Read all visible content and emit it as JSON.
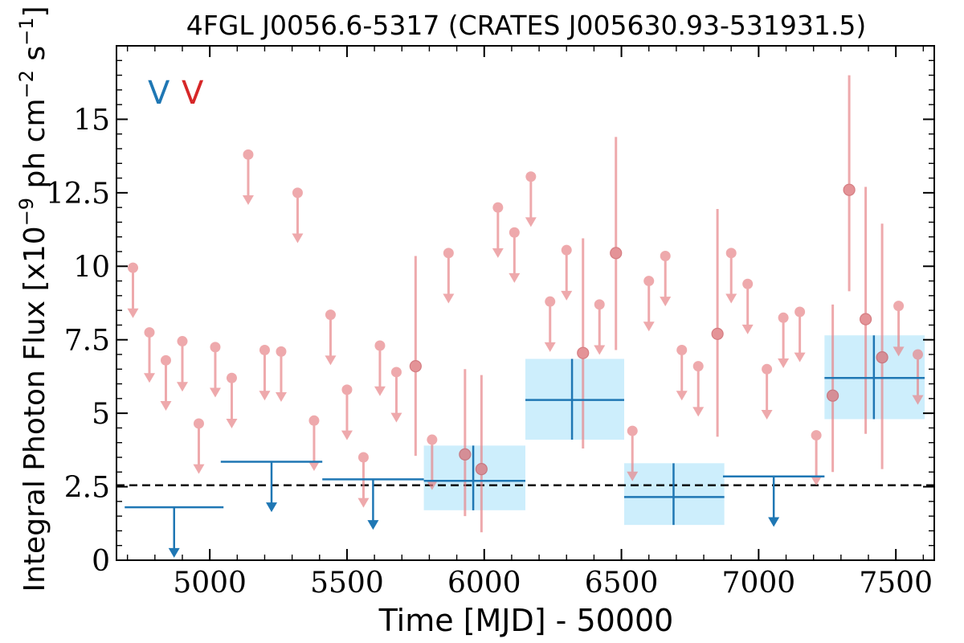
{
  "chart_data": {
    "type": "scatter",
    "title": "4FGL J0056.6-5317 (CRATES J005630.93-531931.5)",
    "xlabel": "Time [MJD] - 50000",
    "ylabel": "Integral Photon Flux [x10",
    "ylabel_exp": "−9",
    "ylabel_mid": " ph cm",
    "ylabel_exp2": "−2",
    "ylabel_end": " s",
    "ylabel_exp3": "−1",
    "ylabel_close": "]",
    "legend": [
      {
        "symbol": "V",
        "color": "#1f77b4"
      },
      {
        "symbol": "V",
        "color": "#d62728"
      }
    ],
    "xlim": [
      4660,
      7640
    ],
    "ylim": [
      0,
      17.5
    ],
    "x_ticks": [
      5000,
      5500,
      6000,
      6500,
      7000,
      7500
    ],
    "x_tick_labels": [
      "5000",
      "5500",
      "6000",
      "6500",
      "7000",
      "7500"
    ],
    "y_ticks": [
      0,
      2.5,
      5,
      7.5,
      10,
      12.5,
      15
    ],
    "y_tick_labels": [
      "0",
      "2.5",
      "5",
      "7.5",
      "10",
      "12.5",
      "15"
    ],
    "reference_line": {
      "y": 2.55,
      "style": "dashed",
      "color": "#000000"
    },
    "series_blue": {
      "color": "#1f77b4",
      "box_color": "#cdeefc",
      "upper_limits": [
        {
          "x0": 4690,
          "x1": 5050,
          "y": 1.8
        },
        {
          "x0": 5040,
          "x1": 5410,
          "y": 3.35
        },
        {
          "x0": 5410,
          "x1": 5780,
          "y": 2.75
        },
        {
          "x0": 6870,
          "x1": 7240,
          "y": 2.85
        }
      ],
      "detections": [
        {
          "x": 5960,
          "x0": 5780,
          "x1": 6150,
          "y": 2.7,
          "ylo": 1.7,
          "yhi": 3.9
        },
        {
          "x": 6320,
          "x0": 6150,
          "x1": 6510,
          "y": 5.45,
          "ylo": 4.1,
          "yhi": 6.85
        },
        {
          "x": 6690,
          "x0": 6510,
          "x1": 6875,
          "y": 2.15,
          "ylo": 1.2,
          "yhi": 3.3
        },
        {
          "x": 7420,
          "x0": 7240,
          "x1": 7605,
          "y": 6.2,
          "ylo": 4.8,
          "yhi": 7.65
        }
      ]
    },
    "series_red": {
      "color": "#e8868a",
      "upper_limits": [
        {
          "x": 4720,
          "y": 9.95
        },
        {
          "x": 4780,
          "y": 7.75
        },
        {
          "x": 4840,
          "y": 6.8
        },
        {
          "x": 4900,
          "y": 7.45
        },
        {
          "x": 4960,
          "y": 4.65
        },
        {
          "x": 5020,
          "y": 7.25
        },
        {
          "x": 5080,
          "y": 6.2
        },
        {
          "x": 5140,
          "y": 13.8
        },
        {
          "x": 5200,
          "y": 7.15
        },
        {
          "x": 5260,
          "y": 7.1
        },
        {
          "x": 5320,
          "y": 12.5
        },
        {
          "x": 5380,
          "y": 4.75
        },
        {
          "x": 5440,
          "y": 8.35
        },
        {
          "x": 5500,
          "y": 5.8
        },
        {
          "x": 5560,
          "y": 3.5
        },
        {
          "x": 5620,
          "y": 7.3
        },
        {
          "x": 5680,
          "y": 6.4
        },
        {
          "x": 5810,
          "y": 4.1
        },
        {
          "x": 5870,
          "y": 10.45
        },
        {
          "x": 6050,
          "y": 12.0
        },
        {
          "x": 6110,
          "y": 11.15
        },
        {
          "x": 6170,
          "y": 13.05
        },
        {
          "x": 6240,
          "y": 8.8
        },
        {
          "x": 6300,
          "y": 10.55
        },
        {
          "x": 6420,
          "y": 8.7
        },
        {
          "x": 6540,
          "y": 4.4
        },
        {
          "x": 6600,
          "y": 9.5
        },
        {
          "x": 6660,
          "y": 10.35
        },
        {
          "x": 6720,
          "y": 7.15
        },
        {
          "x": 6780,
          "y": 6.6
        },
        {
          "x": 6900,
          "y": 10.45
        },
        {
          "x": 6960,
          "y": 9.4
        },
        {
          "x": 7030,
          "y": 6.5
        },
        {
          "x": 7090,
          "y": 8.25
        },
        {
          "x": 7150,
          "y": 8.45
        },
        {
          "x": 7210,
          "y": 4.25
        },
        {
          "x": 7510,
          "y": 8.65
        },
        {
          "x": 7580,
          "y": 7.0
        }
      ],
      "detections": [
        {
          "x": 5750,
          "y": 6.6,
          "ylo": 3.55,
          "yhi": 10.35
        },
        {
          "x": 5930,
          "y": 3.6,
          "ylo": 1.5,
          "yhi": 6.5
        },
        {
          "x": 5990,
          "y": 3.1,
          "ylo": 0.95,
          "yhi": 6.3
        },
        {
          "x": 6360,
          "y": 7.05,
          "ylo": 3.8,
          "yhi": 10.95
        },
        {
          "x": 6480,
          "y": 10.45,
          "ylo": 7.15,
          "yhi": 14.4
        },
        {
          "x": 6850,
          "y": 7.7,
          "ylo": 4.2,
          "yhi": 11.95
        },
        {
          "x": 7270,
          "y": 5.6,
          "ylo": 3.0,
          "yhi": 8.7
        },
        {
          "x": 7330,
          "y": 12.6,
          "ylo": 9.15,
          "yhi": 16.5
        },
        {
          "x": 7390,
          "y": 8.2,
          "ylo": 4.3,
          "yhi": 12.7
        },
        {
          "x": 7450,
          "y": 6.9,
          "ylo": 3.1,
          "yhi": 11.45
        }
      ]
    }
  }
}
